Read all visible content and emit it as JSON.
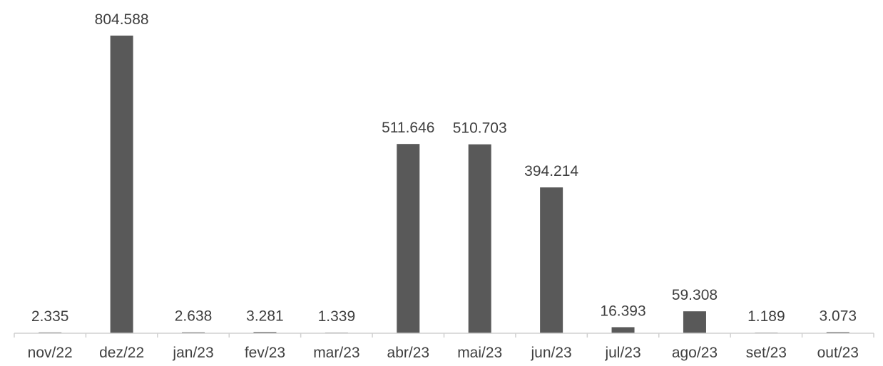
{
  "chart_data": {
    "type": "bar",
    "categories": [
      "nov/22",
      "dez/22",
      "jan/23",
      "fev/23",
      "mar/23",
      "abr/23",
      "mai/23",
      "jun/23",
      "jul/23",
      "ago/23",
      "set/23",
      "out/23"
    ],
    "values": [
      2335,
      804588,
      2638,
      3281,
      1339,
      511646,
      510703,
      394214,
      16393,
      59308,
      1189,
      3073
    ],
    "data_labels": [
      "2.335",
      "804.588",
      "2.638",
      "3.281",
      "1.339",
      "511.646",
      "510.703",
      "394.214",
      "16.393",
      "59.308",
      "1.189",
      "3.073"
    ],
    "title": "",
    "xlabel": "",
    "ylabel": "",
    "ylim": [
      0,
      804588
    ],
    "grid": false,
    "legend": "none",
    "colors": {
      "bar": "#595959",
      "axis": "#d0d0d0",
      "text": "#3f3f3f"
    }
  }
}
